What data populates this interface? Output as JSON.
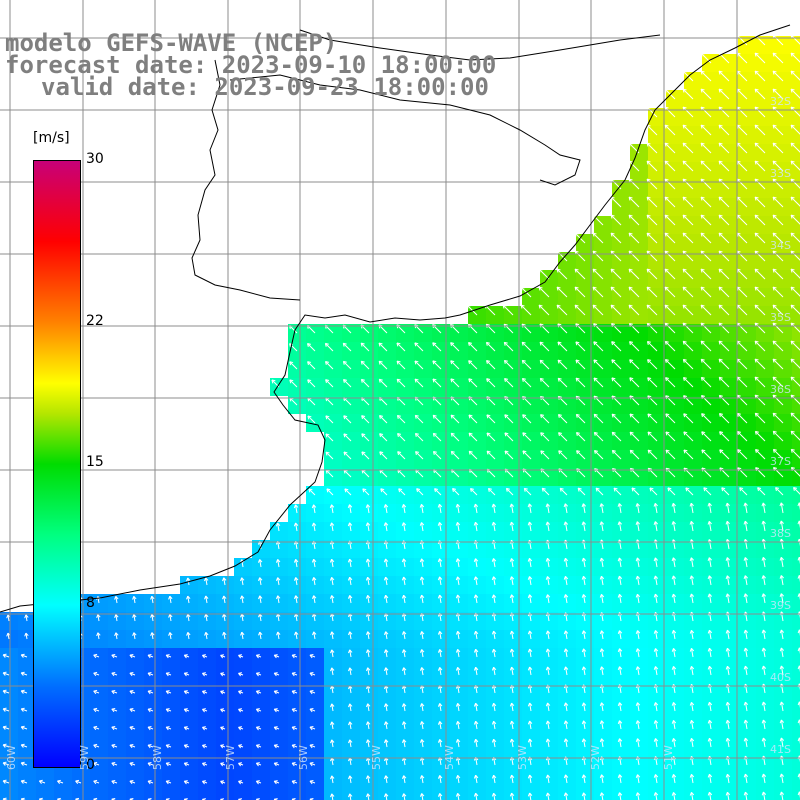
{
  "header": {
    "line1": "modelo GEFS-WAVE (NCEP)",
    "line2": "forecast date: 2023-09-10 18:00:00",
    "line3": "valid date: 2023-09-23 18:00:00"
  },
  "legend": {
    "unit": "[m/s]",
    "ticks": [
      "30",
      "22",
      "15",
      "8",
      "0"
    ],
    "tick_values": [
      30,
      22,
      15,
      8,
      0
    ],
    "min": 0,
    "max": 30
  },
  "grid": {
    "lat_labels": [
      "32S",
      "33S",
      "34S",
      "35S",
      "36S",
      "37S",
      "38S",
      "39S",
      "40S",
      "41S"
    ],
    "lon_labels": [
      "60W",
      "59W",
      "58W",
      "57W",
      "56W",
      "55W",
      "54W",
      "53W",
      "52W",
      "51W"
    ]
  },
  "colors": {
    "land": "#ffffff",
    "coast": "#000000",
    "grid": "#8c8c8c",
    "title": "#7f7f7f",
    "arrow": "#ffffff"
  }
}
